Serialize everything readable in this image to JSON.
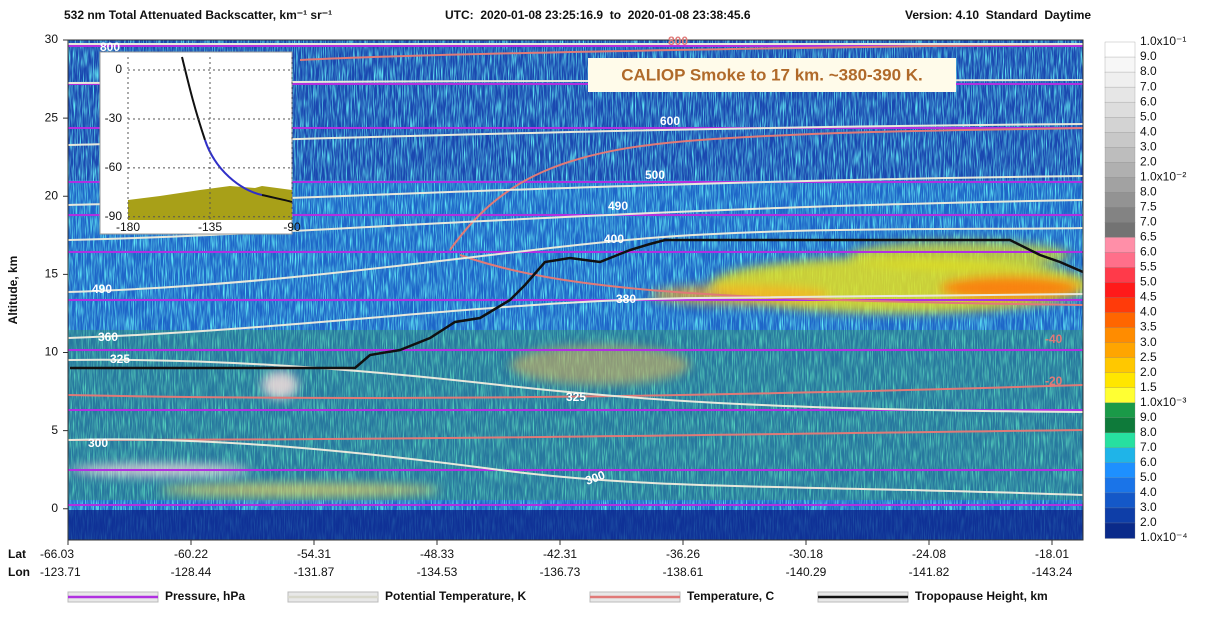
{
  "chart_data": {
    "type": "curtain",
    "title": "532 nm Total Attenuated Backscatter, km⁻¹ sr⁻¹",
    "time_range": "UTC:  2020-01-08 23:25:16.9  to  2020-01-08 23:38:45.6",
    "version": "Version: 4.10  Standard  Daytime",
    "ylabel": "Altitude, km",
    "ylim": [
      -2,
      30
    ],
    "yticks": [
      0,
      5,
      10,
      15,
      20,
      25,
      30
    ],
    "x_row_labels": [
      "Lat",
      "Lon"
    ],
    "lat": [
      "-66.03",
      "-60.22",
      "-54.31",
      "-48.33",
      "-42.31",
      "-36.26",
      "-30.18",
      "-24.08",
      "-18.01"
    ],
    "lon": [
      "-123.71",
      "-128.44",
      "-131.87",
      "-134.53",
      "-136.73",
      "-138.61",
      "-140.29",
      "-141.82",
      "-143.24"
    ],
    "annotation": "CALIOP Smoke to 17 km. ~380-390 K.",
    "contour_labels": [
      "800",
      "800",
      "600",
      "500",
      "490",
      "400",
      "380",
      "490",
      "360",
      "325",
      "325",
      "300",
      "300",
      "-40",
      "-20"
    ],
    "colorbar": {
      "labels": [
        "1.0x10⁻¹",
        "9.0",
        "8.0",
        "7.0",
        "6.0",
        "5.0",
        "4.0",
        "3.0",
        "2.0",
        "1.0x10⁻²",
        "8.0",
        "7.5",
        "7.0",
        "6.5",
        "6.0",
        "5.5",
        "5.0",
        "4.5",
        "4.0",
        "3.5",
        "3.0",
        "2.5",
        "2.0",
        "1.5",
        "1.0x10⁻³",
        "9.0",
        "8.0",
        "7.0",
        "6.0",
        "5.0",
        "4.0",
        "3.0",
        "2.0",
        "1.0x10⁻⁴"
      ],
      "colors": [
        "#ffffff",
        "#f7f7f7",
        "#efefef",
        "#e6e6e6",
        "#dddddd",
        "#d3d3d3",
        "#c8c8c8",
        "#bdbdbd",
        "#b0b0b0",
        "#a2a2a2",
        "#939393",
        "#838383",
        "#737373",
        "#ff8fa8",
        "#ff6f8a",
        "#ff3a4a",
        "#ff1a1a",
        "#ff3b0a",
        "#ff6600",
        "#ff8c00",
        "#ffa500",
        "#ffc800",
        "#ffe600",
        "#ffff33",
        "#1a9a48",
        "#0e7a3a",
        "#27e0a0",
        "#1fb4e8",
        "#1e90ff",
        "#1a74e8",
        "#1458c8",
        "#0e3ea8",
        "#0a2a8a"
      ]
    },
    "legend": [
      {
        "name": "Pressure, hPa",
        "color": "#b030e0"
      },
      {
        "name": "Potential Temperature, K",
        "color": "#d8d8cc"
      },
      {
        "name": "Temperature, C",
        "color": "#e07a78"
      },
      {
        "name": "Tropopause Height, km",
        "color": "#111111"
      }
    ],
    "inset": {
      "xlim": [
        -180,
        -90
      ],
      "ylim": [
        -92,
        8
      ],
      "xticks": [
        -180,
        -135,
        -90
      ],
      "yticks": [
        0,
        -30,
        -60,
        -90
      ]
    }
  }
}
